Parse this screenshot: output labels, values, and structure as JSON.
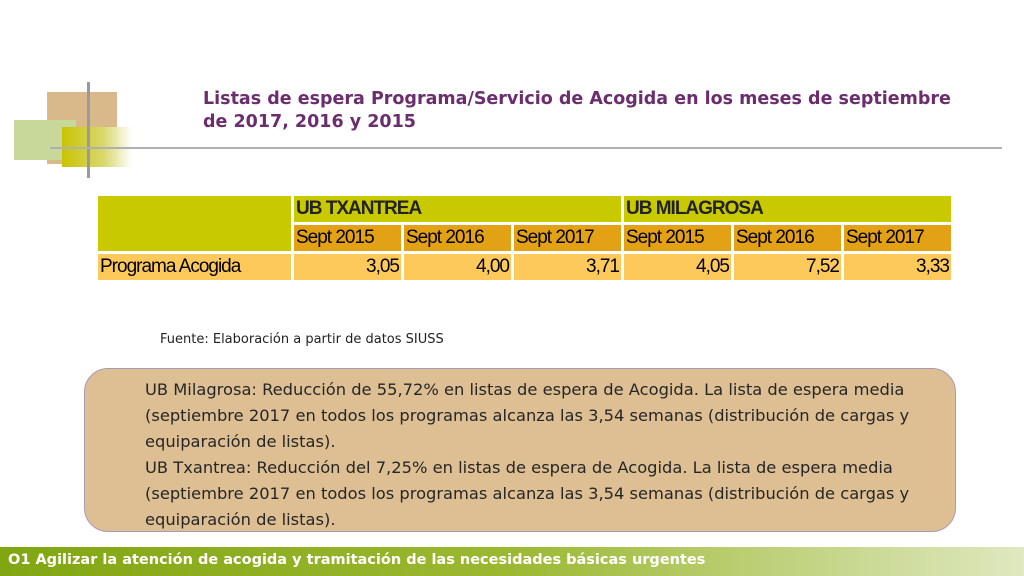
{
  "title": "Listas de espera Programa/Servicio de Acogida en los meses de septiembre de 2017, 2016 y 2015",
  "table": {
    "groups": [
      "UB TXANTREA",
      "UB MILAGROSA"
    ],
    "periods": [
      "Sept 2015",
      "Sept 2016",
      "Sept 2017",
      "Sept 2015",
      "Sept 2016",
      "Sept 2017"
    ],
    "rows": [
      {
        "label": "Programa Acogida",
        "values": [
          "3,05",
          "4,00",
          "3,71",
          "4,05",
          "7,52",
          "3,33"
        ]
      }
    ]
  },
  "source": "Fuente: Elaboración a partir de datos SIUSS",
  "notes": [
    "UB Milagrosa: Reducción de 55,72% en listas de espera de Acogida. La lista de espera media (septiembre 2017 en todos los programas alcanza las 3,54 semanas (distribución de cargas y equiparación de listas).",
    "UB Txantrea: Reducción del 7,25% en listas de espera de Acogida. La lista de espera media (septiembre 2017 en todos los programas alcanza las 3,54 semanas (distribución de cargas y equiparación de listas)."
  ],
  "footer": "O1 Agilizar la atención de acogida y tramitación de las necesidades básicas urgentes",
  "colors": {
    "title": "#6b2d6e",
    "header_lime": "#c9c900",
    "header_gold": "#e3a116",
    "cell_light": "#fdc95a",
    "note_box": "#ddbf93",
    "footer": "#82a612"
  }
}
